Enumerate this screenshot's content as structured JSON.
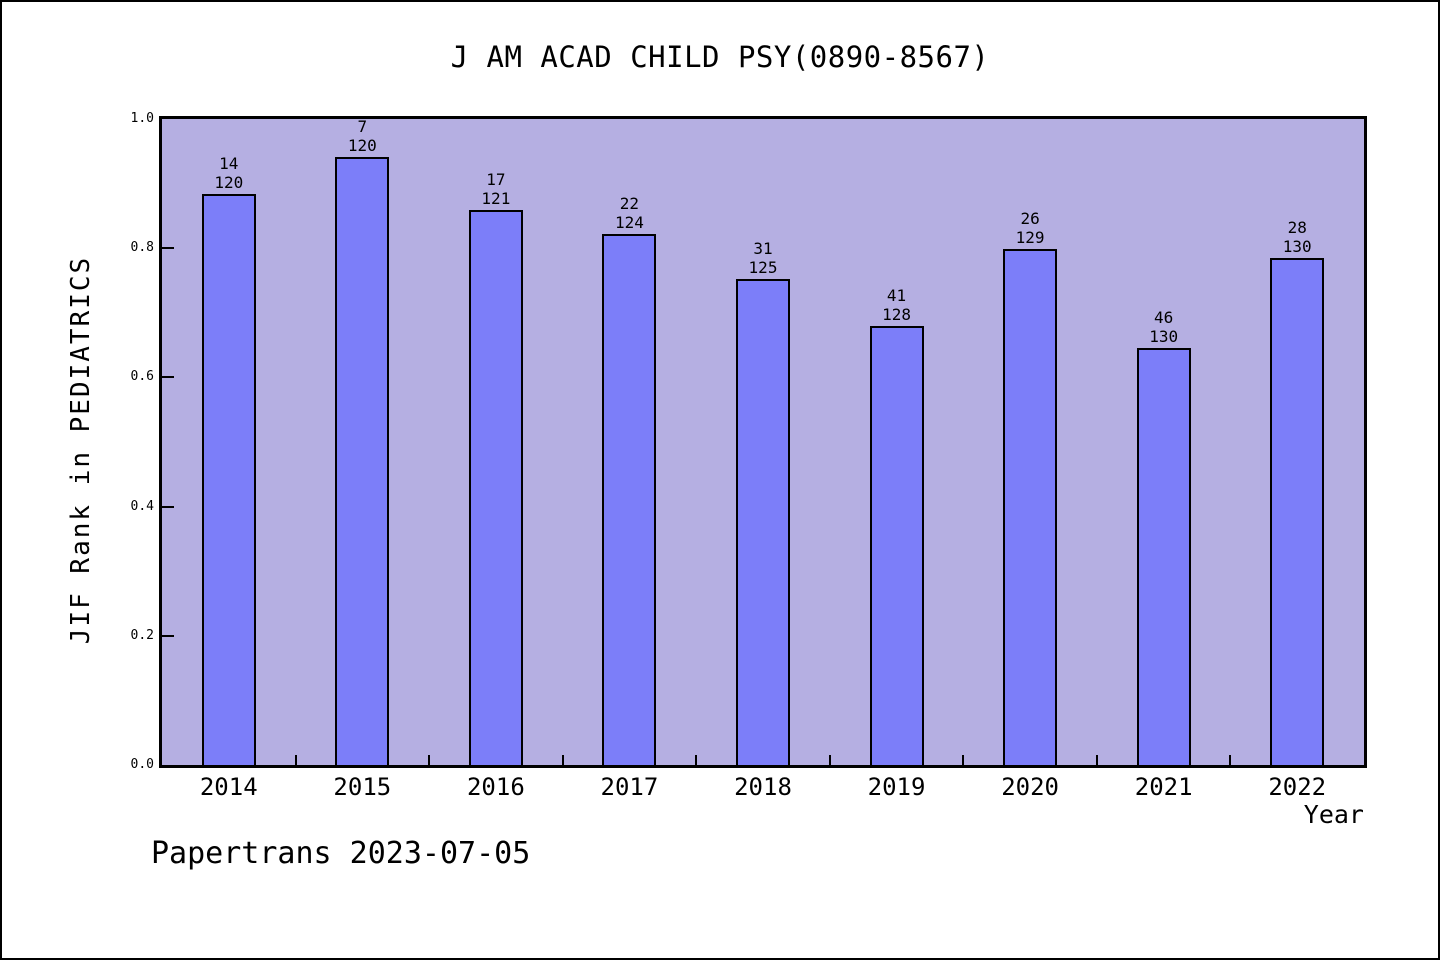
{
  "footer": {
    "text": "Papertrans 2023-07-05"
  },
  "chart_data": {
    "type": "bar",
    "title": "J AM ACAD CHILD PSY(0890-8567)",
    "xlabel": "Year",
    "ylabel": "JIF Rank in PEDIATRICS",
    "categories": [
      "2014",
      "2015",
      "2016",
      "2017",
      "2018",
      "2019",
      "2020",
      "2021",
      "2022"
    ],
    "values": [
      0.8833,
      0.9417,
      0.8595,
      0.8226,
      0.752,
      0.6797,
      0.7984,
      0.6462,
      0.7846
    ],
    "bar_annotations": [
      {
        "rank": "14",
        "total": "120"
      },
      {
        "rank": "7",
        "total": "120"
      },
      {
        "rank": "17",
        "total": "121"
      },
      {
        "rank": "22",
        "total": "124"
      },
      {
        "rank": "31",
        "total": "125"
      },
      {
        "rank": "41",
        "total": "128"
      },
      {
        "rank": "26",
        "total": "129"
      },
      {
        "rank": "46",
        "total": "130"
      },
      {
        "rank": "28",
        "total": "130"
      }
    ],
    "ylim": [
      0.0,
      1.0
    ],
    "ytick_values": [
      0.0,
      0.2,
      0.4,
      0.6,
      0.8,
      1.0
    ],
    "ytick_labels": [
      "0.0",
      "0.2",
      "0.4",
      "0.6",
      "0.8",
      "1.0"
    ],
    "grid": "off",
    "legend": "none",
    "tick_direction": "in",
    "colors": {
      "bar_fill": "#7c7ef9",
      "bar_border": "#000000",
      "plot_background": "#b5afe2",
      "figure_background": "#ffffff",
      "text": "#000000"
    }
  }
}
